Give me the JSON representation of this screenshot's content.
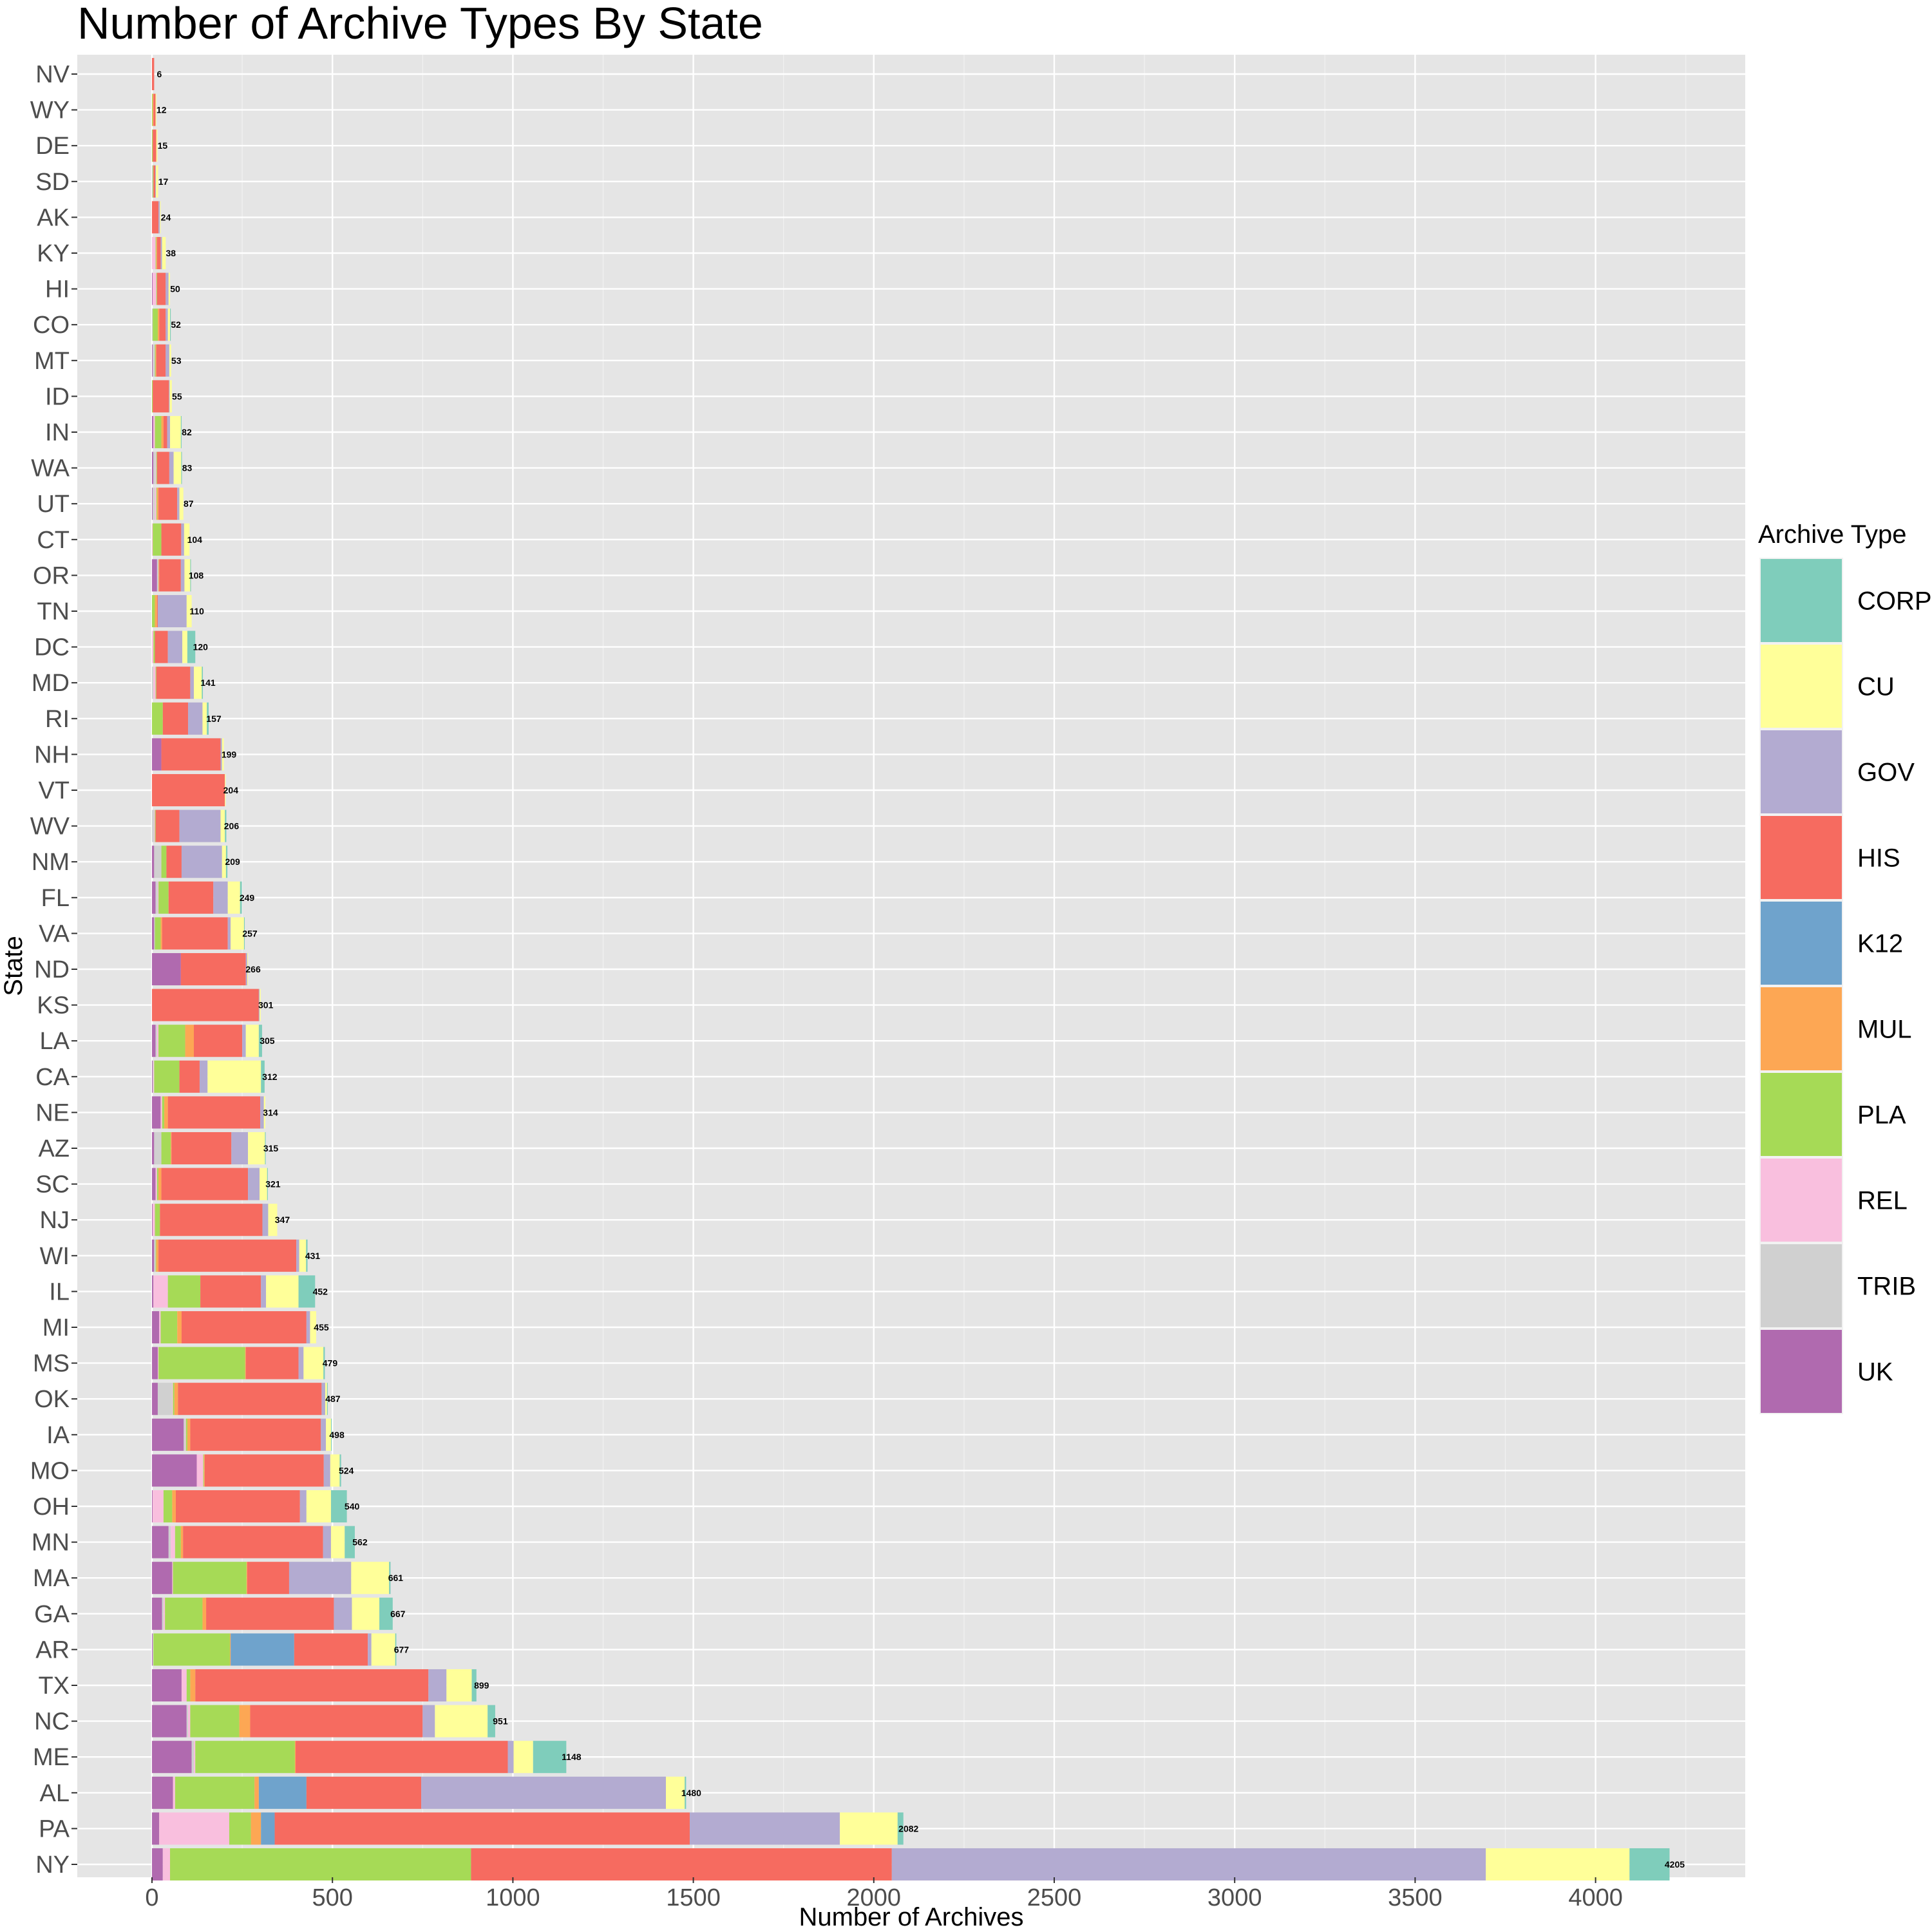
{
  "chart_data": {
    "type": "bar",
    "orientation": "horizontal",
    "stacked": true,
    "title": "Number of Archive Types By State",
    "xlabel": "Number of Archives",
    "ylabel": "State",
    "xlim": [
      -200,
      4400
    ],
    "x_ticks": [
      0,
      500,
      1000,
      1500,
      2000,
      2500,
      3000,
      3500,
      4000
    ],
    "x_tick_labels": [
      "0",
      "500",
      "1000",
      "1500",
      "2000",
      "2500",
      "3000",
      "3500",
      "4000"
    ],
    "grid": true,
    "legend": {
      "title": "Archive Type",
      "position": "right",
      "entries": [
        "CORP",
        "CU",
        "GOV",
        "HIS",
        "K12",
        "MUL",
        "PLA",
        "REL",
        "TRIB",
        "UK"
      ]
    },
    "colors": {
      "CORP": "#7fcdbb",
      "CU": "#ffff99",
      "GOV": "#b3abd1",
      "HIS": "#f66b60",
      "K12": "#6fa3cc",
      "MUL": "#fda754",
      "PLA": "#a6da56",
      "REL": "#f9bfde",
      "TRIB": "#d0d0d0",
      "UK": "#b06aaf"
    },
    "stack_order": [
      "UK",
      "TRIB",
      "REL",
      "PLA",
      "MUL",
      "K12",
      "HIS",
      "GOV",
      "CU",
      "CORP"
    ],
    "categories": [
      "NV",
      "WY",
      "DE",
      "SD",
      "AK",
      "KY",
      "HI",
      "CO",
      "MT",
      "ID",
      "IN",
      "WA",
      "UT",
      "CT",
      "OR",
      "TN",
      "DC",
      "MD",
      "RI",
      "NH",
      "VT",
      "WV",
      "NM",
      "FL",
      "VA",
      "ND",
      "KS",
      "LA",
      "CA",
      "NE",
      "AZ",
      "SC",
      "NJ",
      "WI",
      "IL",
      "MI",
      "MS",
      "OK",
      "IA",
      "MO",
      "OH",
      "MN",
      "MA",
      "GA",
      "AR",
      "TX",
      "NC",
      "ME",
      "AL",
      "PA",
      "NY"
    ],
    "totals": [
      6,
      12,
      15,
      17,
      24,
      38,
      50,
      52,
      53,
      55,
      82,
      83,
      87,
      104,
      108,
      110,
      120,
      141,
      157,
      199,
      204,
      206,
      209,
      249,
      257,
      266,
      301,
      305,
      312,
      314,
      315,
      321,
      347,
      431,
      452,
      455,
      479,
      487,
      498,
      524,
      540,
      562,
      661,
      667,
      677,
      899,
      951,
      1148,
      1480,
      2082,
      4205
    ],
    "data": [
      {
        "state": "NV",
        "UK": 0,
        "TRIB": 0,
        "REL": 0,
        "PLA": 0,
        "MUL": 0,
        "K12": 0,
        "HIS": 6,
        "GOV": 0,
        "CU": 0,
        "CORP": 0
      },
      {
        "state": "WY",
        "UK": 0,
        "TRIB": 0,
        "REL": 0,
        "PLA": 2,
        "MUL": 2,
        "K12": 0,
        "HIS": 6,
        "GOV": 0,
        "CU": 2,
        "CORP": 0
      },
      {
        "state": "DE",
        "UK": 0,
        "TRIB": 0,
        "REL": 0,
        "PLA": 2,
        "MUL": 0,
        "K12": 0,
        "HIS": 10,
        "GOV": 0,
        "CU": 3,
        "CORP": 0
      },
      {
        "state": "SD",
        "UK": 0,
        "TRIB": 2,
        "REL": 0,
        "PLA": 2,
        "MUL": 0,
        "K12": 0,
        "HIS": 5,
        "GOV": 2,
        "CU": 6,
        "CORP": 0
      },
      {
        "state": "AK",
        "UK": 0,
        "TRIB": 0,
        "REL": 0,
        "PLA": 0,
        "MUL": 0,
        "K12": 0,
        "HIS": 18,
        "GOV": 4,
        "CU": 2,
        "CORP": 0
      },
      {
        "state": "KY",
        "UK": 0,
        "TRIB": 0,
        "REL": 10,
        "PLA": 2,
        "MUL": 2,
        "K12": 0,
        "HIS": 10,
        "GOV": 4,
        "CU": 10,
        "CORP": 0
      },
      {
        "state": "HI",
        "UK": 2,
        "TRIB": 0,
        "REL": 10,
        "PLA": 2,
        "MUL": 0,
        "K12": 0,
        "HIS": 24,
        "GOV": 8,
        "CU": 4,
        "CORP": 0
      },
      {
        "state": "CO",
        "UK": 0,
        "TRIB": 2,
        "REL": 0,
        "PLA": 14,
        "MUL": 4,
        "K12": 0,
        "HIS": 18,
        "GOV": 6,
        "CU": 6,
        "CORP": 2
      },
      {
        "state": "MT",
        "UK": 2,
        "TRIB": 6,
        "REL": 0,
        "PLA": 2,
        "MUL": 2,
        "K12": 0,
        "HIS": 26,
        "GOV": 10,
        "CU": 5,
        "CORP": 0
      },
      {
        "state": "ID",
        "UK": 0,
        "TRIB": 0,
        "REL": 0,
        "PLA": 2,
        "MUL": 0,
        "K12": 0,
        "HIS": 45,
        "GOV": 2,
        "CU": 6,
        "CORP": 0
      },
      {
        "state": "IN",
        "UK": 4,
        "TRIB": 0,
        "REL": 4,
        "PLA": 18,
        "MUL": 6,
        "K12": 0,
        "HIS": 10,
        "GOV": 8,
        "CU": 30,
        "CORP": 2
      },
      {
        "state": "WA",
        "UK": 4,
        "TRIB": 6,
        "REL": 2,
        "PLA": 2,
        "MUL": 0,
        "K12": 0,
        "HIS": 34,
        "GOV": 12,
        "CU": 21,
        "CORP": 2
      },
      {
        "state": "UT",
        "UK": 2,
        "TRIB": 6,
        "REL": 4,
        "PLA": 2,
        "MUL": 4,
        "K12": 0,
        "HIS": 52,
        "GOV": 6,
        "CU": 11,
        "CORP": 0
      },
      {
        "state": "CT",
        "UK": 0,
        "TRIB": 0,
        "REL": 2,
        "PLA": 24,
        "MUL": 0,
        "K12": 0,
        "HIS": 55,
        "GOV": 8,
        "CU": 15,
        "CORP": 0
      },
      {
        "state": "OR",
        "UK": 14,
        "TRIB": 4,
        "REL": 0,
        "PLA": 0,
        "MUL": 2,
        "K12": 0,
        "HIS": 60,
        "GOV": 10,
        "CU": 16,
        "CORP": 2
      },
      {
        "state": "TN",
        "UK": 0,
        "TRIB": 0,
        "REL": 0,
        "PLA": 8,
        "MUL": 6,
        "K12": 0,
        "HIS": 2,
        "GOV": 80,
        "CU": 14,
        "CORP": 0
      },
      {
        "state": "DC",
        "UK": 0,
        "TRIB": 0,
        "REL": 4,
        "PLA": 4,
        "MUL": 0,
        "K12": 0,
        "HIS": 36,
        "GOV": 40,
        "CU": 14,
        "CORP": 22
      },
      {
        "state": "MD",
        "UK": 0,
        "TRIB": 4,
        "REL": 6,
        "PLA": 2,
        "MUL": 0,
        "K12": 0,
        "HIS": 94,
        "GOV": 10,
        "CU": 22,
        "CORP": 3
      },
      {
        "state": "RI",
        "UK": 0,
        "TRIB": 0,
        "REL": 0,
        "PLA": 30,
        "MUL": 0,
        "K12": 0,
        "HIS": 70,
        "GOV": 40,
        "CU": 12,
        "CORP": 5
      },
      {
        "state": "NH",
        "UK": 26,
        "TRIB": 0,
        "REL": 0,
        "PLA": 0,
        "MUL": 0,
        "K12": 0,
        "HIS": 164,
        "GOV": 4,
        "CU": 5,
        "CORP": 0
      },
      {
        "state": "VT",
        "UK": 0,
        "TRIB": 0,
        "REL": 0,
        "PLA": 0,
        "MUL": 0,
        "K12": 0,
        "HIS": 202,
        "GOV": 0,
        "CU": 2,
        "CORP": 0
      },
      {
        "state": "WV",
        "UK": 0,
        "TRIB": 6,
        "REL": 2,
        "PLA": 2,
        "MUL": 0,
        "K12": 0,
        "HIS": 66,
        "GOV": 114,
        "CU": 12,
        "CORP": 4
      },
      {
        "state": "NM",
        "UK": 6,
        "TRIB": 20,
        "REL": 0,
        "PLA": 14,
        "MUL": 0,
        "K12": 0,
        "HIS": 42,
        "GOV": 112,
        "CU": 11,
        "CORP": 4
      },
      {
        "state": "FL",
        "UK": 10,
        "TRIB": 6,
        "REL": 2,
        "PLA": 28,
        "MUL": 0,
        "K12": 0,
        "HIS": 124,
        "GOV": 40,
        "CU": 34,
        "CORP": 5
      },
      {
        "state": "VA",
        "UK": 6,
        "TRIB": 2,
        "REL": 0,
        "PLA": 16,
        "MUL": 4,
        "K12": 0,
        "HIS": 182,
        "GOV": 8,
        "CU": 37,
        "CORP": 2
      },
      {
        "state": "ND",
        "UK": 80,
        "TRIB": 0,
        "REL": 0,
        "PLA": 0,
        "MUL": 0,
        "K12": 0,
        "HIS": 180,
        "GOV": 4,
        "CU": 2,
        "CORP": 0
      },
      {
        "state": "KS",
        "UK": 0,
        "TRIB": 0,
        "REL": 0,
        "PLA": 0,
        "MUL": 0,
        "K12": 0,
        "HIS": 296,
        "GOV": 2,
        "CU": 3,
        "CORP": 0
      },
      {
        "state": "LA",
        "UK": 10,
        "TRIB": 4,
        "REL": 4,
        "PLA": 74,
        "MUL": 24,
        "K12": 0,
        "HIS": 134,
        "GOV": 10,
        "CU": 36,
        "CORP": 9
      },
      {
        "state": "CA",
        "UK": 2,
        "TRIB": 2,
        "REL": 2,
        "PLA": 70,
        "MUL": 0,
        "K12": 0,
        "HIS": 56,
        "GOV": 22,
        "CU": 148,
        "CORP": 10
      },
      {
        "state": "NE",
        "UK": 24,
        "TRIB": 0,
        "REL": 4,
        "PLA": 6,
        "MUL": 10,
        "K12": 0,
        "HIS": 256,
        "GOV": 10,
        "CU": 4,
        "CORP": 0
      },
      {
        "state": "AZ",
        "UK": 6,
        "TRIB": 20,
        "REL": 0,
        "PLA": 26,
        "MUL": 2,
        "K12": 0,
        "HIS": 166,
        "GOV": 46,
        "CU": 47,
        "CORP": 2
      },
      {
        "state": "SC",
        "UK": 10,
        "TRIB": 0,
        "REL": 4,
        "PLA": 4,
        "MUL": 8,
        "K12": 0,
        "HIS": 240,
        "GOV": 32,
        "CU": 21,
        "CORP": 2
      },
      {
        "state": "NJ",
        "UK": 2,
        "TRIB": 0,
        "REL": 6,
        "PLA": 14,
        "MUL": 0,
        "K12": 0,
        "HIS": 284,
        "GOV": 16,
        "CU": 25,
        "CORP": 0
      },
      {
        "state": "WI",
        "UK": 6,
        "TRIB": 4,
        "REL": 0,
        "PLA": 2,
        "MUL": 6,
        "K12": 0,
        "HIS": 382,
        "GOV": 8,
        "CU": 19,
        "CORP": 4
      },
      {
        "state": "IL",
        "UK": 4,
        "TRIB": 0,
        "REL": 40,
        "PLA": 90,
        "MUL": 0,
        "K12": 0,
        "HIS": 168,
        "GOV": 14,
        "CU": 90,
        "CORP": 46
      },
      {
        "state": "MI",
        "UK": 20,
        "TRIB": 0,
        "REL": 4,
        "PLA": 46,
        "MUL": 12,
        "K12": 0,
        "HIS": 346,
        "GOV": 10,
        "CU": 17,
        "CORP": 0
      },
      {
        "state": "MS",
        "UK": 16,
        "TRIB": 0,
        "REL": 2,
        "PLA": 240,
        "MUL": 2,
        "K12": 0,
        "HIS": 146,
        "GOV": 14,
        "CU": 55,
        "CORP": 4
      },
      {
        "state": "OK",
        "UK": 16,
        "TRIB": 40,
        "REL": 2,
        "PLA": 4,
        "MUL": 10,
        "K12": 0,
        "HIS": 398,
        "GOV": 10,
        "CU": 5,
        "CORP": 2
      },
      {
        "state": "IA",
        "UK": 88,
        "TRIB": 4,
        "REL": 2,
        "PLA": 4,
        "MUL": 8,
        "K12": 0,
        "HIS": 362,
        "GOV": 14,
        "CU": 14,
        "CORP": 2
      },
      {
        "state": "MO",
        "UK": 124,
        "TRIB": 0,
        "REL": 18,
        "PLA": 2,
        "MUL": 2,
        "K12": 0,
        "HIS": 330,
        "GOV": 18,
        "CU": 26,
        "CORP": 4
      },
      {
        "state": "OH",
        "UK": 2,
        "TRIB": 0,
        "REL": 30,
        "PLA": 24,
        "MUL": 10,
        "K12": 0,
        "HIS": 344,
        "GOV": 18,
        "CU": 68,
        "CORP": 44
      },
      {
        "state": "MN",
        "UK": 46,
        "TRIB": 6,
        "REL": 12,
        "PLA": 16,
        "MUL": 6,
        "K12": 0,
        "HIS": 388,
        "GOV": 22,
        "CU": 38,
        "CORP": 28
      },
      {
        "state": "MA",
        "UK": 56,
        "TRIB": 0,
        "REL": 2,
        "PLA": 204,
        "MUL": 2,
        "K12": 0,
        "HIS": 116,
        "GOV": 172,
        "CU": 105,
        "CORP": 4
      },
      {
        "state": "GA",
        "UK": 28,
        "TRIB": 4,
        "REL": 4,
        "PLA": 104,
        "MUL": 10,
        "K12": 0,
        "HIS": 354,
        "GOV": 50,
        "CU": 76,
        "CORP": 37
      },
      {
        "state": "AR",
        "UK": 2,
        "TRIB": 2,
        "REL": 0,
        "PLA": 212,
        "MUL": 2,
        "K12": 176,
        "HIS": 204,
        "GOV": 10,
        "CU": 66,
        "CORP": 3
      },
      {
        "state": "TX",
        "UK": 82,
        "TRIB": 0,
        "REL": 14,
        "PLA": 10,
        "MUL": 14,
        "K12": 0,
        "HIS": 646,
        "GOV": 50,
        "CU": 70,
        "CORP": 13
      },
      {
        "state": "NC",
        "UK": 96,
        "TRIB": 4,
        "REL": 6,
        "PLA": 136,
        "MUL": 30,
        "K12": 0,
        "HIS": 478,
        "GOV": 34,
        "CU": 146,
        "CORP": 21
      },
      {
        "state": "ME",
        "UK": 110,
        "TRIB": 6,
        "REL": 4,
        "PLA": 276,
        "MUL": 2,
        "K12": 0,
        "HIS": 588,
        "GOV": 16,
        "CU": 54,
        "CORP": 92
      },
      {
        "state": "AL",
        "UK": 58,
        "TRIB": 0,
        "REL": 6,
        "PLA": 220,
        "MUL": 12,
        "K12": 132,
        "HIS": 318,
        "GOV": 678,
        "CU": 52,
        "CORP": 4
      },
      {
        "state": "PA",
        "UK": 20,
        "TRIB": 0,
        "REL": 194,
        "PLA": 60,
        "MUL": 28,
        "K12": 38,
        "HIS": 1150,
        "GOV": 416,
        "CU": 160,
        "CORP": 16
      },
      {
        "state": "NY",
        "UK": 30,
        "TRIB": 0,
        "REL": 20,
        "PLA": 834,
        "MUL": 0,
        "K12": 0,
        "HIS": 1166,
        "GOV": 1646,
        "CU": 398,
        "CORP": 111
      }
    ]
  }
}
